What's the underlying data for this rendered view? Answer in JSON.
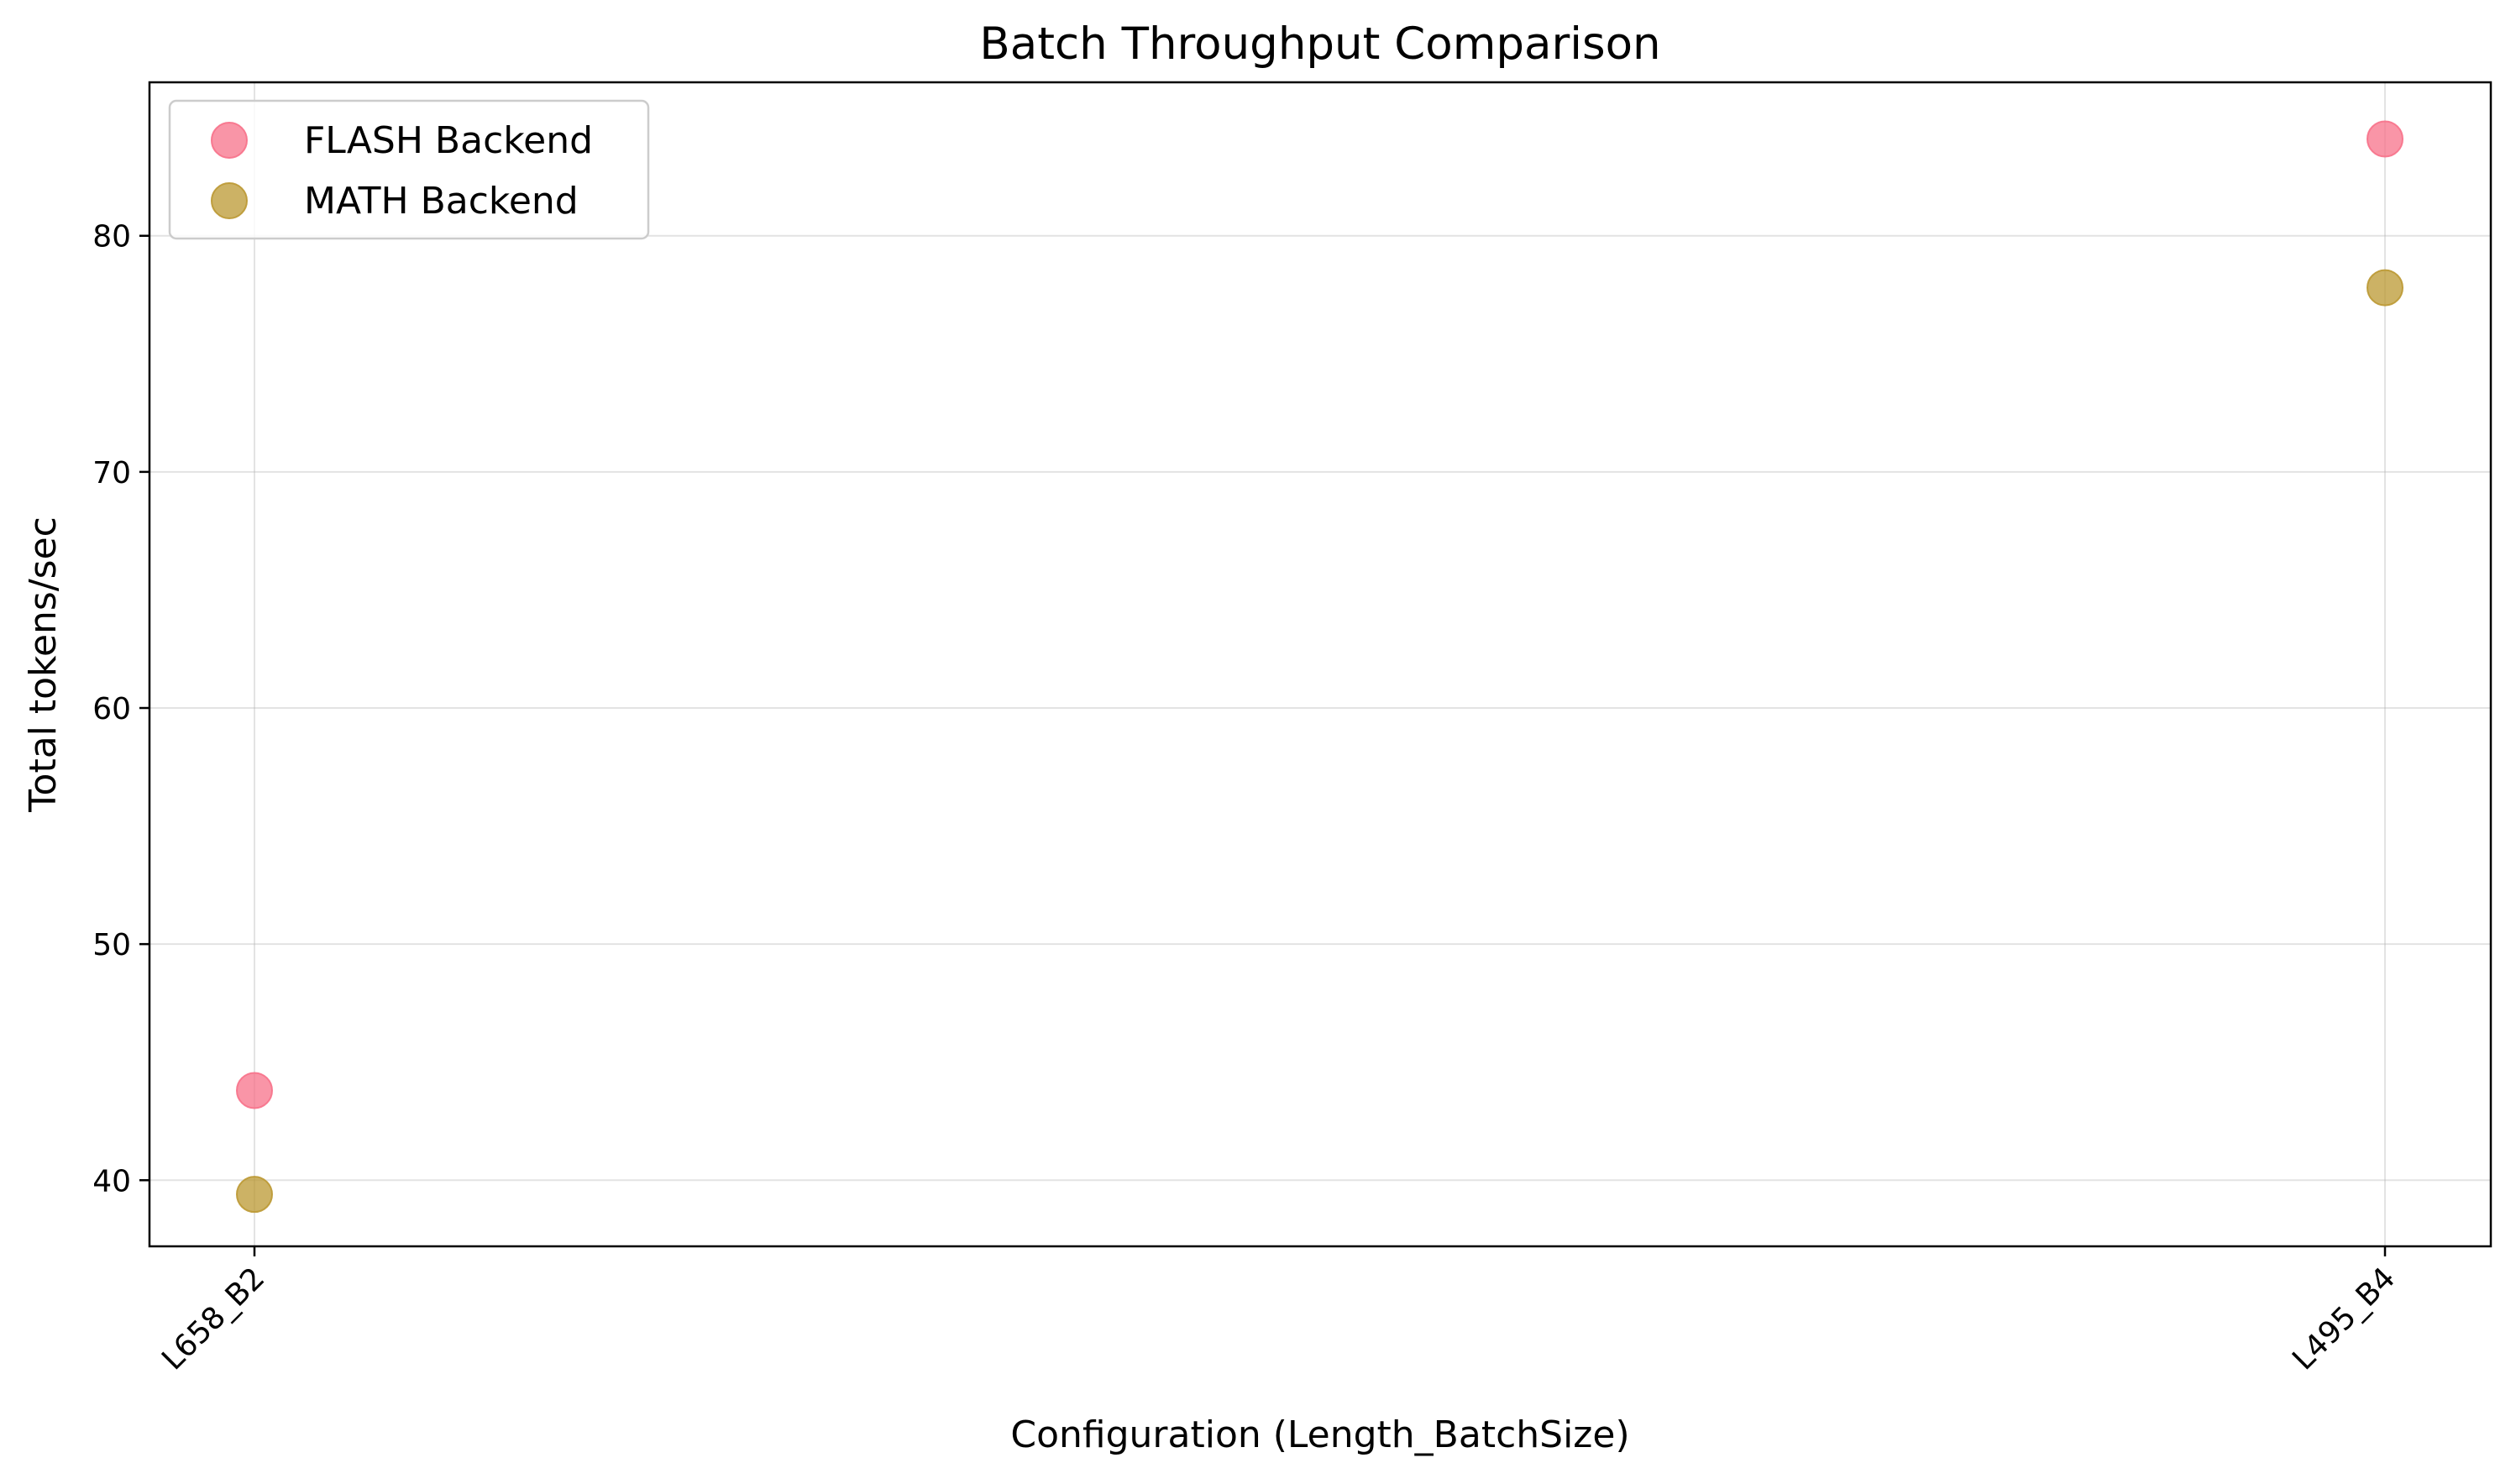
{
  "chart_data": {
    "type": "scatter",
    "title": "Batch Throughput Comparison",
    "xlabel": "Configuration (Length_BatchSize)",
    "ylabel": "Total tokens/sec",
    "categories": [
      "L658_B2",
      "L495_B4"
    ],
    "ylim": [
      37.2,
      86.5
    ],
    "yticks": [
      40,
      50,
      60,
      70,
      80
    ],
    "grid": true,
    "legend_position": "top-left",
    "series": [
      {
        "name": "FLASH Backend",
        "color": "#f77189",
        "values": [
          43.8,
          84.1
        ]
      },
      {
        "name": "MATH Backend",
        "color": "#bb9832",
        "values": [
          39.4,
          77.8
        ]
      }
    ]
  }
}
